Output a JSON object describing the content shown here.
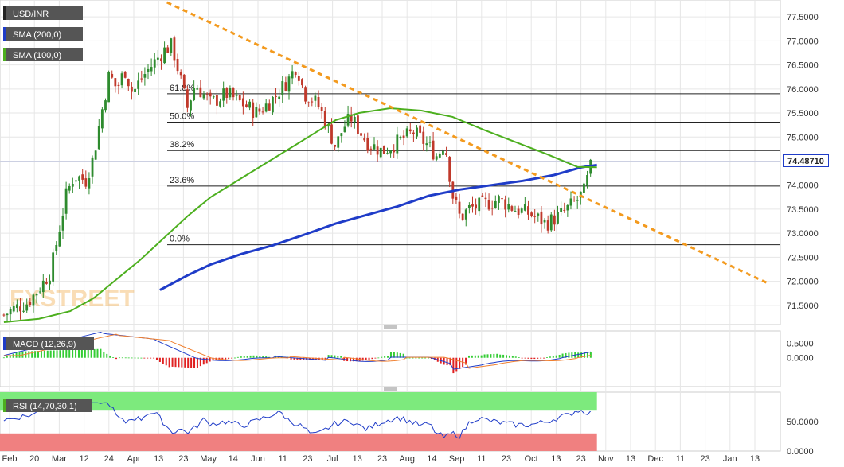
{
  "chart_data": [
    {
      "type": "line",
      "panel": "price",
      "legend": [
        {
          "name": "USD/INR",
          "color": "#555555"
        },
        {
          "name": "SMA (200,0)",
          "color": "#1f3cc8"
        },
        {
          "name": "SMA (100,0)",
          "color": "#4caf1e"
        }
      ],
      "last_price": "74.48710",
      "watermark": "FXSTREET",
      "ylim": [
        71.1,
        77.85
      ],
      "yticks": [
        "77.5000",
        "77.0000",
        "76.5000",
        "76.0000",
        "75.5000",
        "75.0000",
        "74.5000",
        "74.0000",
        "73.5000",
        "73.0000",
        "72.5000",
        "72.0000",
        "71.5000"
      ],
      "fib_levels": [
        {
          "label": "61.8%",
          "value": 75.9
        },
        {
          "label": "50.0%",
          "value": 75.31
        },
        {
          "label": "38.2%",
          "value": 74.72
        },
        {
          "label": "23.6%",
          "value": 73.98
        },
        {
          "label": "0.0%",
          "value": 72.76
        }
      ],
      "trendline": [
        [
          0.214,
          77.8
        ],
        [
          0.984,
          71.96
        ]
      ],
      "close_series": [
        [
          0.005,
          71.3
        ],
        [
          0.02,
          71.45
        ],
        [
          0.035,
          71.55
        ],
        [
          0.05,
          71.85
        ],
        [
          0.065,
          72.2
        ],
        [
          0.075,
          73.0
        ],
        [
          0.085,
          73.8
        ],
        [
          0.095,
          74.2
        ],
        [
          0.11,
          74.1
        ],
        [
          0.12,
          74.6
        ],
        [
          0.13,
          75.5
        ],
        [
          0.14,
          76.3
        ],
        [
          0.15,
          76.0
        ],
        [
          0.16,
          76.4
        ],
        [
          0.17,
          75.9
        ],
        [
          0.18,
          76.2
        ],
        [
          0.19,
          76.4
        ],
        [
          0.2,
          76.6
        ],
        [
          0.21,
          76.8
        ],
        [
          0.22,
          76.9
        ],
        [
          0.23,
          76.3
        ],
        [
          0.24,
          75.6
        ],
        [
          0.25,
          76.1
        ],
        [
          0.27,
          75.7
        ],
        [
          0.29,
          75.9
        ],
        [
          0.31,
          75.7
        ],
        [
          0.33,
          75.5
        ],
        [
          0.35,
          75.8
        ],
        [
          0.37,
          76.2
        ],
        [
          0.38,
          76.5
        ],
        [
          0.39,
          75.9
        ],
        [
          0.4,
          75.8
        ],
        [
          0.41,
          75.6
        ],
        [
          0.42,
          75.2
        ],
        [
          0.43,
          74.8
        ],
        [
          0.44,
          75.2
        ],
        [
          0.45,
          75.4
        ],
        [
          0.47,
          74.9
        ],
        [
          0.49,
          74.7
        ],
        [
          0.51,
          74.9
        ],
        [
          0.53,
          75.1
        ],
        [
          0.55,
          74.8
        ],
        [
          0.56,
          74.6
        ],
        [
          0.57,
          74.9
        ],
        [
          0.58,
          73.8
        ],
        [
          0.59,
          73.3
        ],
        [
          0.6,
          73.5
        ],
        [
          0.62,
          73.6
        ],
        [
          0.64,
          73.7
        ],
        [
          0.66,
          73.5
        ],
        [
          0.68,
          73.4
        ],
        [
          0.7,
          73.2
        ],
        [
          0.71,
          73.3
        ],
        [
          0.72,
          73.4
        ],
        [
          0.73,
          73.55
        ],
        [
          0.74,
          73.7
        ],
        [
          0.75,
          73.9
        ],
        [
          0.755,
          74.3
        ],
        [
          0.76,
          74.49
        ]
      ],
      "sma200": [
        [
          0.205,
          71.82
        ],
        [
          0.24,
          72.12
        ],
        [
          0.27,
          72.35
        ],
        [
          0.31,
          72.57
        ],
        [
          0.35,
          72.75
        ],
        [
          0.39,
          72.97
        ],
        [
          0.43,
          73.2
        ],
        [
          0.47,
          73.38
        ],
        [
          0.51,
          73.56
        ],
        [
          0.55,
          73.78
        ],
        [
          0.59,
          73.91
        ],
        [
          0.63,
          74.0
        ],
        [
          0.67,
          74.09
        ],
        [
          0.71,
          74.21
        ],
        [
          0.745,
          74.37
        ],
        [
          0.765,
          74.42
        ]
      ],
      "sma100": [
        [
          0.005,
          71.15
        ],
        [
          0.05,
          71.22
        ],
        [
          0.09,
          71.38
        ],
        [
          0.12,
          71.65
        ],
        [
          0.15,
          72.05
        ],
        [
          0.18,
          72.45
        ],
        [
          0.21,
          72.9
        ],
        [
          0.24,
          73.35
        ],
        [
          0.27,
          73.75
        ],
        [
          0.31,
          74.15
        ],
        [
          0.35,
          74.55
        ],
        [
          0.39,
          74.95
        ],
        [
          0.43,
          75.35
        ],
        [
          0.46,
          75.5
        ],
        [
          0.5,
          75.6
        ],
        [
          0.54,
          75.55
        ],
        [
          0.58,
          75.42
        ],
        [
          0.62,
          75.15
        ],
        [
          0.66,
          74.9
        ],
        [
          0.7,
          74.65
        ],
        [
          0.74,
          74.38
        ],
        [
          0.765,
          74.37
        ]
      ]
    },
    {
      "type": "line",
      "panel": "macd",
      "legend": "MACD (12,26,9)",
      "yticks": [
        "0.5000",
        "0.0000"
      ],
      "ylim": [
        -1.0,
        0.93
      ]
    },
    {
      "type": "line",
      "panel": "rsi",
      "legend": "RSI (14,70,30,1)",
      "yticks": [
        "50.0000",
        "0.0000"
      ],
      "ylim": [
        0,
        100
      ],
      "overbought": 70,
      "oversold": 30
    }
  ],
  "x_ticks": [
    "Feb",
    "20",
    "Mar",
    "12",
    "24",
    "Apr",
    "13",
    "23",
    "May",
    "14",
    "Jun",
    "11",
    "23",
    "Jul",
    "13",
    "23",
    "Aug",
    "14",
    "Sep",
    "11",
    "23",
    "Oct",
    "13",
    "23",
    "Nov",
    "13",
    "Dec",
    "11",
    "23",
    "Jan",
    "13"
  ],
  "colors": {
    "grid": "#e6e6e6",
    "candle_up": "#2e8b2e",
    "candle_down": "#c0392b",
    "sma200": "#1f3cc8",
    "sma100": "#4caf1e",
    "trend": "#f39a1e",
    "macd": "#1f3cc8",
    "signal": "#f08030",
    "hist_up": "#33cc33",
    "hist_down": "#e02020",
    "rsi_line": "#1f3cc8",
    "rsi_ob": "#7dea7d",
    "rsi_os": "#f08080"
  }
}
